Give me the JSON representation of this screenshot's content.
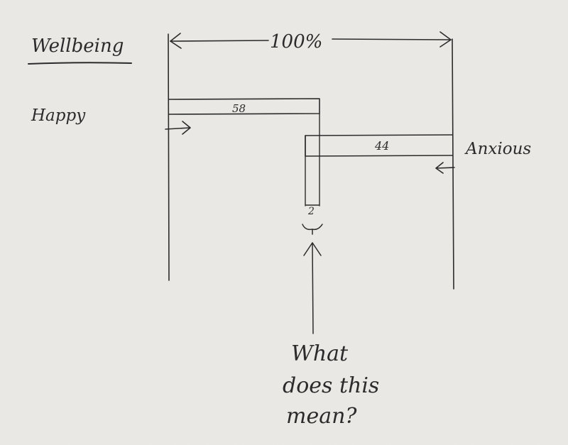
{
  "title": "Wellbeing",
  "total_label": "100%",
  "bars": [
    {
      "label": "Happy",
      "value": 58
    },
    {
      "label": "Anxious",
      "value": 44
    }
  ],
  "overlap_value": "2",
  "question_lines": [
    "What",
    "does this",
    "mean?"
  ],
  "colors": {
    "ink": "#2b2b2b",
    "paper": "#e9e8e4"
  }
}
